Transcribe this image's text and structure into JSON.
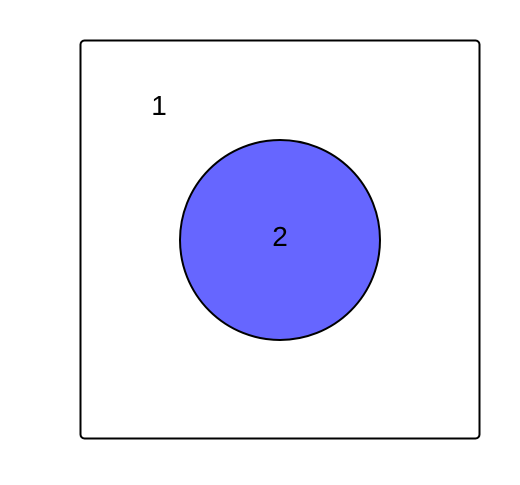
{
  "diagram": {
    "outer_region": {
      "label": "1",
      "fill": "#ffffff",
      "stroke": "#000000"
    },
    "inner_circle": {
      "label": "2",
      "fill": "#6666ff",
      "stroke": "#000000"
    }
  }
}
